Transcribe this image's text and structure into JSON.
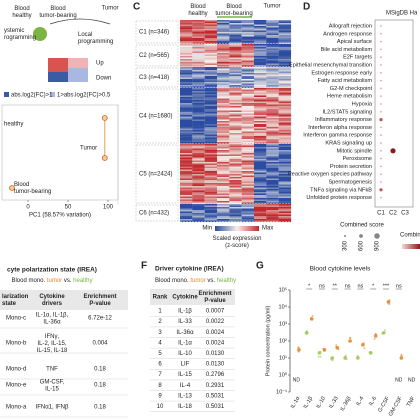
{
  "panel_a": {
    "columns": [
      "Blood\nhealthy",
      "Blood\ntumor-bearing",
      "Tumor"
    ],
    "systemic": "ystemic\nrogramming",
    "local": "Local\nprogramming",
    "up": "Up",
    "down": "Down",
    "legend": [
      "abs.log2(FC)>1",
      "1>abs.log2(FC)>0.5"
    ]
  },
  "panel_b": {
    "points": [
      {
        "label": "healthy",
        "pc1": 96
      },
      {
        "label": "Tumor",
        "pc1": 96
      },
      {
        "label": "Blood\ntumor-bearing",
        "pc1": -20
      }
    ],
    "xlabel": "PC1 (58.57% variation)",
    "xlim": [
      -30,
      110
    ],
    "xticks": [
      0,
      50,
      100
    ]
  },
  "panel_c": {
    "letter": "C",
    "columns": [
      "Blood\nhealthy",
      "Blood\ntumor-bearing",
      "Tumor"
    ],
    "clusters": [
      "C1 (n=346)",
      "C2 (n=565)",
      "C3 (n=418)",
      "C4 (n=1680)",
      "C5 (n=2424)",
      "C6 (n=432)"
    ],
    "min": "Min",
    "max": "Max",
    "colorbar_title": "Scaled expression\n(z-score)"
  },
  "panel_d": {
    "letter": "D",
    "title": "MSigDB Ha",
    "pathways": [
      "Allograft rejection",
      "Androgen response",
      "Apical surface",
      "Bile acid metabolism",
      "E2F targets",
      "Epithelial mesenchymal transition",
      "Estrogen response early",
      "Fatty acid metabolism",
      "G2-M checkpoint",
      "Heme metabolism",
      "Hypoxia",
      "IL2/STAT5 signaling",
      "Inflammatory response",
      "Interferon alpha response",
      "Interferon gamma response",
      "KRAS signaling up",
      "Mitotic spindle",
      "Peroxisome",
      "Protein secretion",
      "Reactive oxygen species pathway",
      "Spermatogenesis",
      "TNFa signaling via NFkB",
      "Unfolded protein response"
    ],
    "columns": [
      "C1",
      "C2",
      "C3"
    ],
    "size_legend_title": "Combined score",
    "size_legend": [
      300,
      600,
      900
    ],
    "color_legend_title": "Combined score"
  },
  "panel_e": {
    "title": "cyte polarization state (IREA)",
    "subtitle": [
      "Blood mono. ",
      "tumor",
      " vs. ",
      "healthy"
    ],
    "header": [
      "larization\nstate",
      "Cytokine\ndrivers",
      "Enrichment\nP-value"
    ],
    "rows": [
      [
        "Mono-c",
        "IL-1α, IL-1β,\nIL-36α",
        "6.72e-12"
      ],
      [
        "Mono-b",
        "IFNγ,\nIL-2, IL-15,\nIL-15, IL-18",
        "0.004"
      ],
      [
        "Mono-d",
        "TNF",
        "0.18"
      ],
      [
        "Mono-e",
        "GM-CSF,\nIL-15",
        "0.18"
      ],
      [
        "Mono-a",
        "IFNα1, IFNβ",
        "0.18"
      ]
    ]
  },
  "panel_f": {
    "letter": "F",
    "title": "Driver cytokine (IREA)",
    "subtitle": [
      "Blood mono. ",
      "tumor",
      " vs. ",
      "healthy"
    ],
    "header": [
      "Rank",
      "Cytokine",
      "Enrichment\nP-value"
    ],
    "rows": [
      [
        "1",
        "IL-1β",
        "0.0007"
      ],
      [
        "2",
        "IL-33",
        "0.0022"
      ],
      [
        "3",
        "IL-36α",
        "0.0024"
      ],
      [
        "4",
        "IL-1α",
        "0.0024"
      ],
      [
        "5",
        "IL-10",
        "0.0130"
      ],
      [
        "6",
        "LIF",
        "0.0130"
      ],
      [
        "7",
        "IL-15",
        "0.2796"
      ],
      [
        "8",
        "IL-4",
        "0.2931"
      ],
      [
        "9",
        "IL-13",
        "0.5031"
      ],
      [
        "10",
        "IL-18",
        "0.5031"
      ]
    ]
  },
  "panel_g": {
    "letter": "G",
    "title": "Blood cytokine levels",
    "ylabel": "Protein concentration (pg/ml)",
    "log_scale": true,
    "ylim": [
      0.1,
      100000
    ],
    "yticks": [
      {
        "value": 100000,
        "label": "10⁵"
      },
      {
        "value": 10000,
        "label": "10⁴"
      },
      {
        "value": 1000,
        "label": "10³"
      },
      {
        "value": 100,
        "label": "10²"
      },
      {
        "value": 10,
        "label": "10¹"
      },
      {
        "value": 1,
        "label": "10⁰"
      },
      {
        "value": 0.1,
        "label": "10⁻¹"
      }
    ],
    "categories": [
      "IL-1α",
      "IL-1β",
      "IL-10",
      "IL-33",
      "IL-36β",
      "IL-4",
      "IL-6",
      "G-CSF",
      "GM-CSF",
      "TNF"
    ],
    "series": [
      {
        "name": "healthy",
        "color": "#9bc94f",
        "values": [
          null,
          300,
          20,
          10,
          10,
          10,
          20,
          300,
          null,
          null
        ]
      },
      {
        "name": "tumor",
        "color": "#e08a2e",
        "values": [
          30,
          2000,
          30,
          40,
          100,
          60,
          200,
          20000,
          10,
          null
        ]
      }
    ],
    "significance": [
      null,
      "*",
      "ns",
      "**",
      "ns",
      "ns",
      "*",
      "***",
      "ns",
      null
    ],
    "nd_label": "ND"
  }
}
